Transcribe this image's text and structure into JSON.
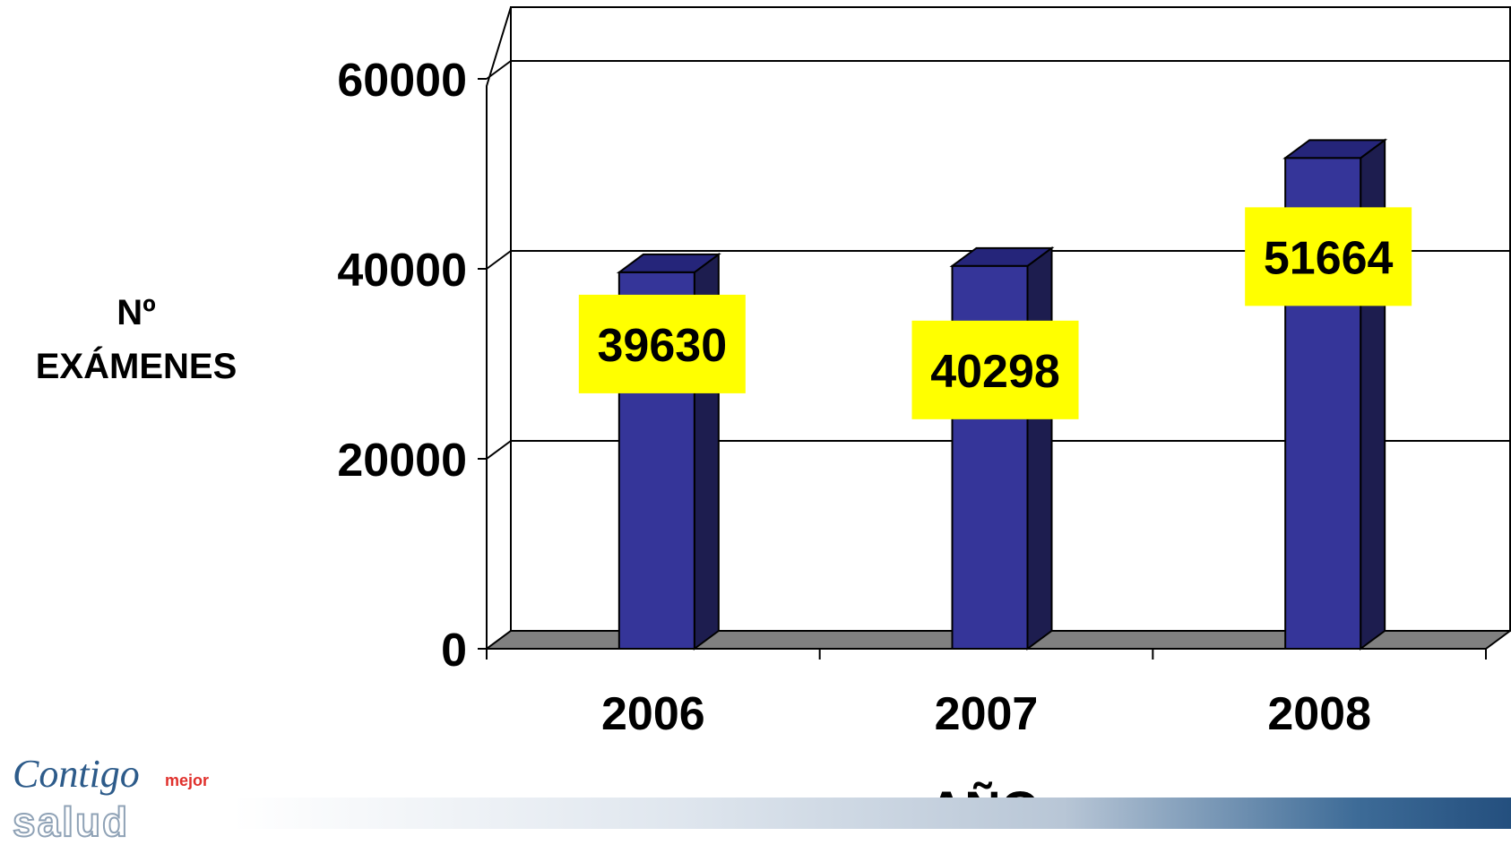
{
  "chart_data": {
    "type": "bar",
    "categories": [
      "2006",
      "2007",
      "2008"
    ],
    "values": [
      39630,
      40298,
      51664
    ],
    "data_labels": [
      "39630",
      "40298",
      "51664"
    ],
    "ylabel_lines": [
      "Nº",
      "EXÁMENES"
    ],
    "xlabel": "AÑO",
    "ylim": [
      0,
      60000
    ],
    "yticks": [
      "0",
      "20000",
      "40000",
      "60000"
    ],
    "grid": true,
    "style": "3d-column",
    "colors": {
      "bar_front": "#353599",
      "bar_side": "#1d1d4f",
      "bar_top": "#25257a",
      "floor": "#808080",
      "label_bg": "#ffff00"
    }
  },
  "logo": {
    "line1": "Contigo",
    "line2": "mejor",
    "line3": "salud"
  }
}
